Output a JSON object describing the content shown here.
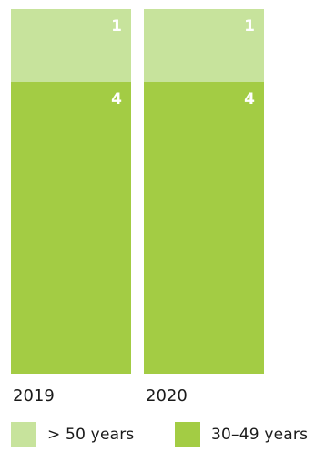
{
  "chart_data": {
    "type": "bar",
    "stacked": true,
    "categories": [
      "2019",
      "2020"
    ],
    "series": [
      {
        "name": "30–49 years",
        "values": [
          4,
          4
        ],
        "color": "#a3cc44"
      },
      {
        "name": "> 50 years",
        "values": [
          1,
          1
        ],
        "color": "#c7e39c"
      }
    ],
    "value_labels_visible": true,
    "title": "",
    "xlabel": "",
    "ylabel": "",
    "ylim": [
      0,
      5
    ],
    "grid": false,
    "legend_position": "bottom",
    "legend_order": [
      "> 50 years",
      "30–49 years"
    ]
  }
}
